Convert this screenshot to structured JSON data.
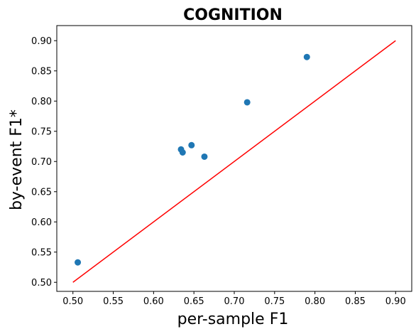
{
  "chart_data": {
    "type": "scatter",
    "title": "COGNITION",
    "xlabel": "per-sample F1",
    "ylabel": "by-event F1*",
    "xlim": [
      0.48,
      0.92
    ],
    "ylim": [
      0.485,
      0.925
    ],
    "xticks": [
      "0.50",
      "0.55",
      "0.60",
      "0.65",
      "0.70",
      "0.75",
      "0.80",
      "0.85",
      "0.90"
    ],
    "yticks": [
      "0.50",
      "0.55",
      "0.60",
      "0.65",
      "0.70",
      "0.75",
      "0.80",
      "0.85",
      "0.90"
    ],
    "grid": false,
    "points": [
      {
        "x": 0.506,
        "y": 0.533
      },
      {
        "x": 0.634,
        "y": 0.72
      },
      {
        "x": 0.636,
        "y": 0.715
      },
      {
        "x": 0.647,
        "y": 0.727
      },
      {
        "x": 0.663,
        "y": 0.708
      },
      {
        "x": 0.716,
        "y": 0.798
      },
      {
        "x": 0.79,
        "y": 0.873
      }
    ],
    "reference_line": {
      "x": [
        0.5,
        0.9
      ],
      "y": [
        0.5,
        0.9
      ]
    },
    "colors": {
      "points": "#1f77b4",
      "reference_line": "#ff0000"
    }
  }
}
